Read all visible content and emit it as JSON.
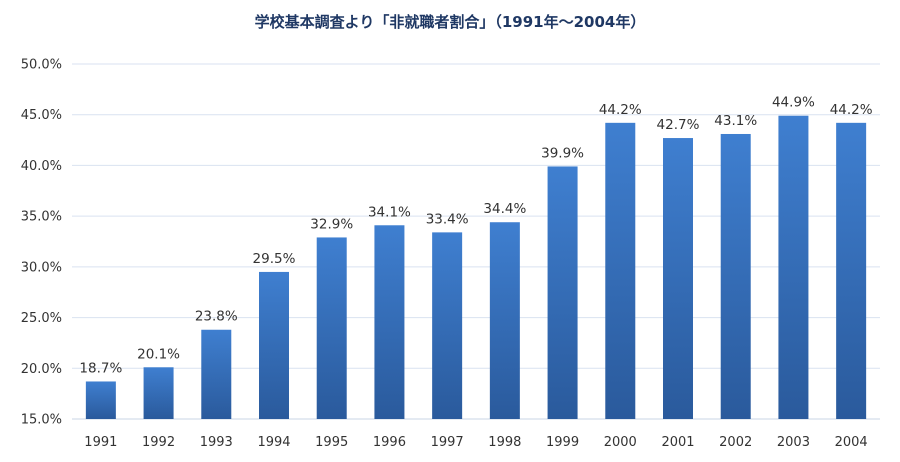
{
  "chart_data": {
    "type": "bar",
    "title": "学校基本調査より「非就職者割合」（1991年～2004年）",
    "xlabel": "",
    "ylabel": "",
    "categories": [
      "1991",
      "1992",
      "1993",
      "1994",
      "1995",
      "1996",
      "1997",
      "1998",
      "1999",
      "2000",
      "2001",
      "2002",
      "2003",
      "2004"
    ],
    "values": [
      18.7,
      20.1,
      23.8,
      29.5,
      32.9,
      34.1,
      33.4,
      34.4,
      39.9,
      44.2,
      42.7,
      43.1,
      44.9,
      44.2
    ],
    "data_labels": [
      "18.7%",
      "20.1%",
      "23.8%",
      "29.5%",
      "32.9%",
      "34.1%",
      "33.4%",
      "34.4%",
      "39.9%",
      "44.2%",
      "42.7%",
      "43.1%",
      "44.9%",
      "44.2%"
    ],
    "ylim": [
      15,
      50
    ],
    "yticks": [
      15,
      20,
      25,
      30,
      35,
      40,
      45,
      50
    ],
    "ytick_labels": [
      "15.0%",
      "20.0%",
      "25.0%",
      "30.0%",
      "35.0%",
      "40.0%",
      "45.0%",
      "50.0%"
    ],
    "grid": true,
    "legend": "none",
    "colors": {
      "bar_top": "#3f7fd0",
      "bar_bottom": "#2a5a9c",
      "grid": "#d9e2f0",
      "axis": "#c9d4e6"
    }
  }
}
